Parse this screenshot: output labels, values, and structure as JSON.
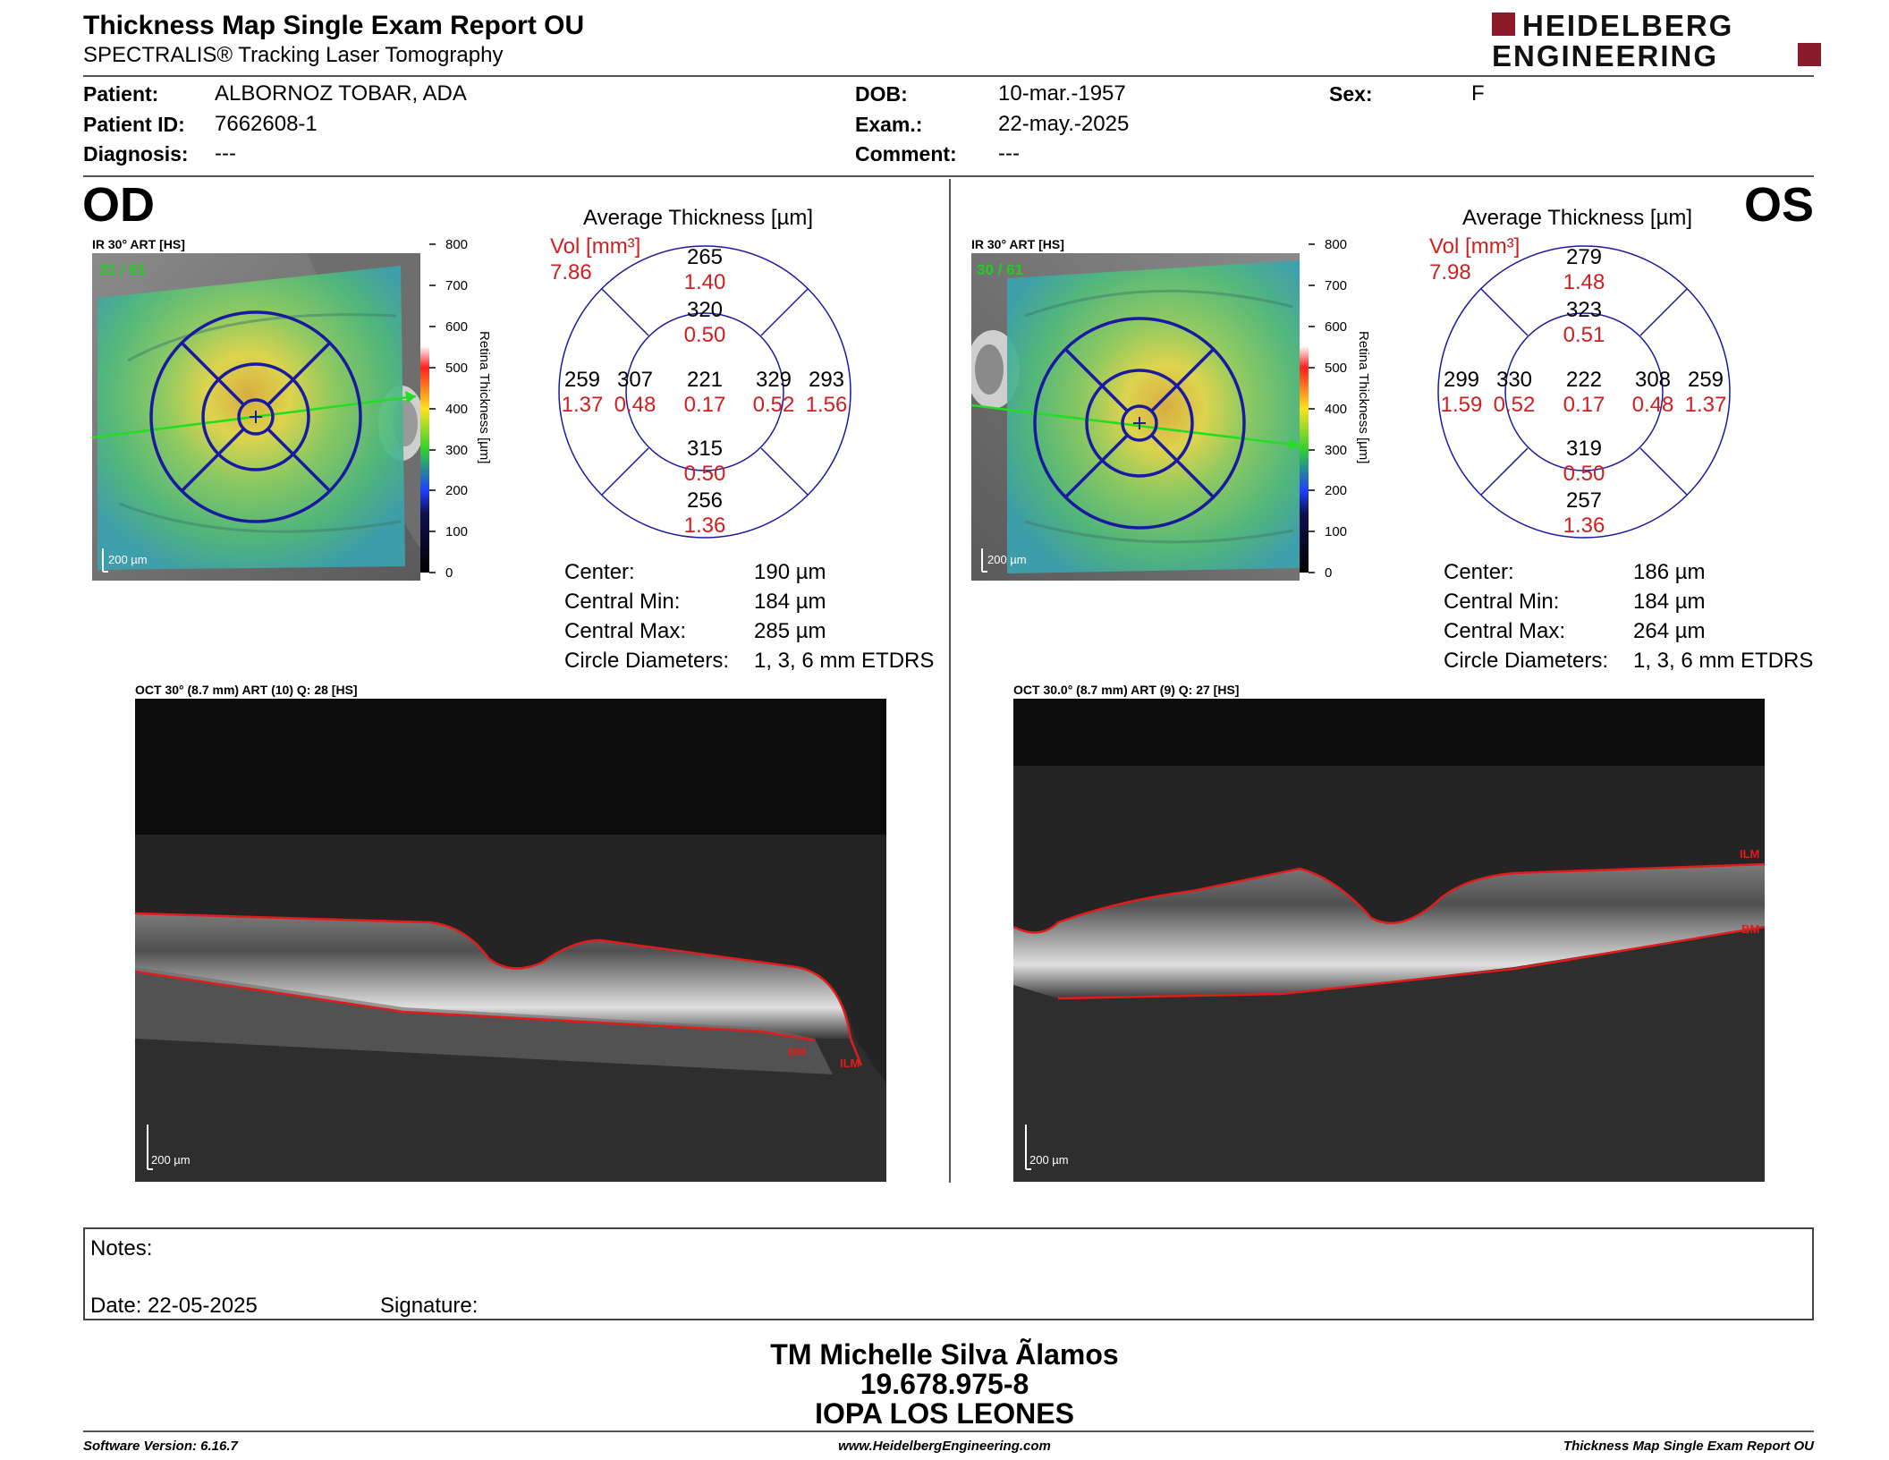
{
  "header": {
    "title": "Thickness Map Single Exam Report OU",
    "subtitle": "SPECTRALIS® Tracking Laser Tomography",
    "logo_line1": "HEIDELBERG",
    "logo_line2": "ENGINEERING"
  },
  "patient": {
    "patient_label": "Patient:",
    "patient_value": "ALBORNOZ TOBAR, ADA",
    "id_label": "Patient ID:",
    "id_value": "7662608-1",
    "diagnosis_label": "Diagnosis:",
    "diagnosis_value": "---",
    "dob_label": "DOB:",
    "dob_value": "10-mar.-1957",
    "exam_label": "Exam.:",
    "exam_value": "22-may.-2025",
    "comment_label": "Comment:",
    "comment_value": "---",
    "sex_label": "Sex:",
    "sex_value": "F"
  },
  "od": {
    "eye": "OD",
    "ir_label": "IR 30° ART [HS]",
    "frames": "31 / 61",
    "scale_label": "200 µm",
    "avg_title": "Average Thickness [µm]",
    "vol_label": "Vol [mm³]",
    "vol_total": "7.86",
    "grid": {
      "outer_top": "265",
      "outer_top_vol": "1.40",
      "inner_top": "320",
      "inner_top_vol": "0.50",
      "outer_left": "259",
      "outer_left_vol": "1.37",
      "inner_left": "307",
      "inner_left_vol": "0.48",
      "center": "221",
      "center_vol": "0.17",
      "inner_right": "329",
      "inner_right_vol": "0.52",
      "outer_right": "293",
      "outer_right_vol": "1.56",
      "inner_bottom": "315",
      "inner_bottom_vol": "0.50",
      "outer_bottom": "256",
      "outer_bottom_vol": "1.36"
    },
    "stats": [
      {
        "label": "Center:",
        "value": "190 µm"
      },
      {
        "label": "Central Min:",
        "value": "184 µm"
      },
      {
        "label": "Central Max:",
        "value": "285 µm"
      },
      {
        "label": "Circle Diameters:",
        "value": "1, 3, 6 mm ETDRS"
      }
    ],
    "oct_label": "OCT 30° (8.7 mm) ART (10) Q: 28 [HS]",
    "oct_scale": "200 µm",
    "bm_label": "BM",
    "ilm_label": "ILM"
  },
  "os": {
    "eye": "OS",
    "ir_label": "IR 30° ART [HS]",
    "frames": "30 / 61",
    "scale_label": "200 µm",
    "avg_title": "Average Thickness [µm]",
    "vol_label": "Vol [mm³]",
    "vol_total": "7.98",
    "grid": {
      "outer_top": "279",
      "outer_top_vol": "1.48",
      "inner_top": "323",
      "inner_top_vol": "0.51",
      "outer_left": "299",
      "outer_left_vol": "1.59",
      "inner_left": "330",
      "inner_left_vol": "0.52",
      "center": "222",
      "center_vol": "0.17",
      "inner_right": "308",
      "inner_right_vol": "0.48",
      "outer_right": "259",
      "outer_right_vol": "1.37",
      "inner_bottom": "319",
      "inner_bottom_vol": "0.50",
      "outer_bottom": "257",
      "outer_bottom_vol": "1.36"
    },
    "stats": [
      {
        "label": "Center:",
        "value": "186 µm"
      },
      {
        "label": "Central Min:",
        "value": "184 µm"
      },
      {
        "label": "Central Max:",
        "value": "264 µm"
      },
      {
        "label": "Circle Diameters:",
        "value": "1, 3, 6 mm ETDRS"
      }
    ],
    "oct_label": "OCT 30.0° (8.7 mm) ART (9) Q: 27 [HS]",
    "oct_scale": "200 µm",
    "bm_label": "BM",
    "ilm_label": "ILM"
  },
  "colorbar": {
    "ticks": [
      "800",
      "700",
      "600",
      "500",
      "400",
      "300",
      "200",
      "100",
      "0"
    ],
    "title": "Retina Thickness [µm]"
  },
  "notes": {
    "notes_label": "Notes:",
    "date_label": "Date: 22-05-2025",
    "signature_label": "Signature:"
  },
  "signature_block": {
    "name": "TM Michelle Silva Ãlamos",
    "rut": "19.678.975-8",
    "institution": "IOPA LOS LEONES"
  },
  "footer": {
    "software": "Software Version: 6.16.7",
    "website": "www.HeidelbergEngineering.com",
    "report": "Thickness Map Single Exam Report OU"
  },
  "colors": {
    "accent_red": "#8b1a2b",
    "vol_red": "#d21e1e",
    "grid_blue": "#1a1aa0"
  }
}
